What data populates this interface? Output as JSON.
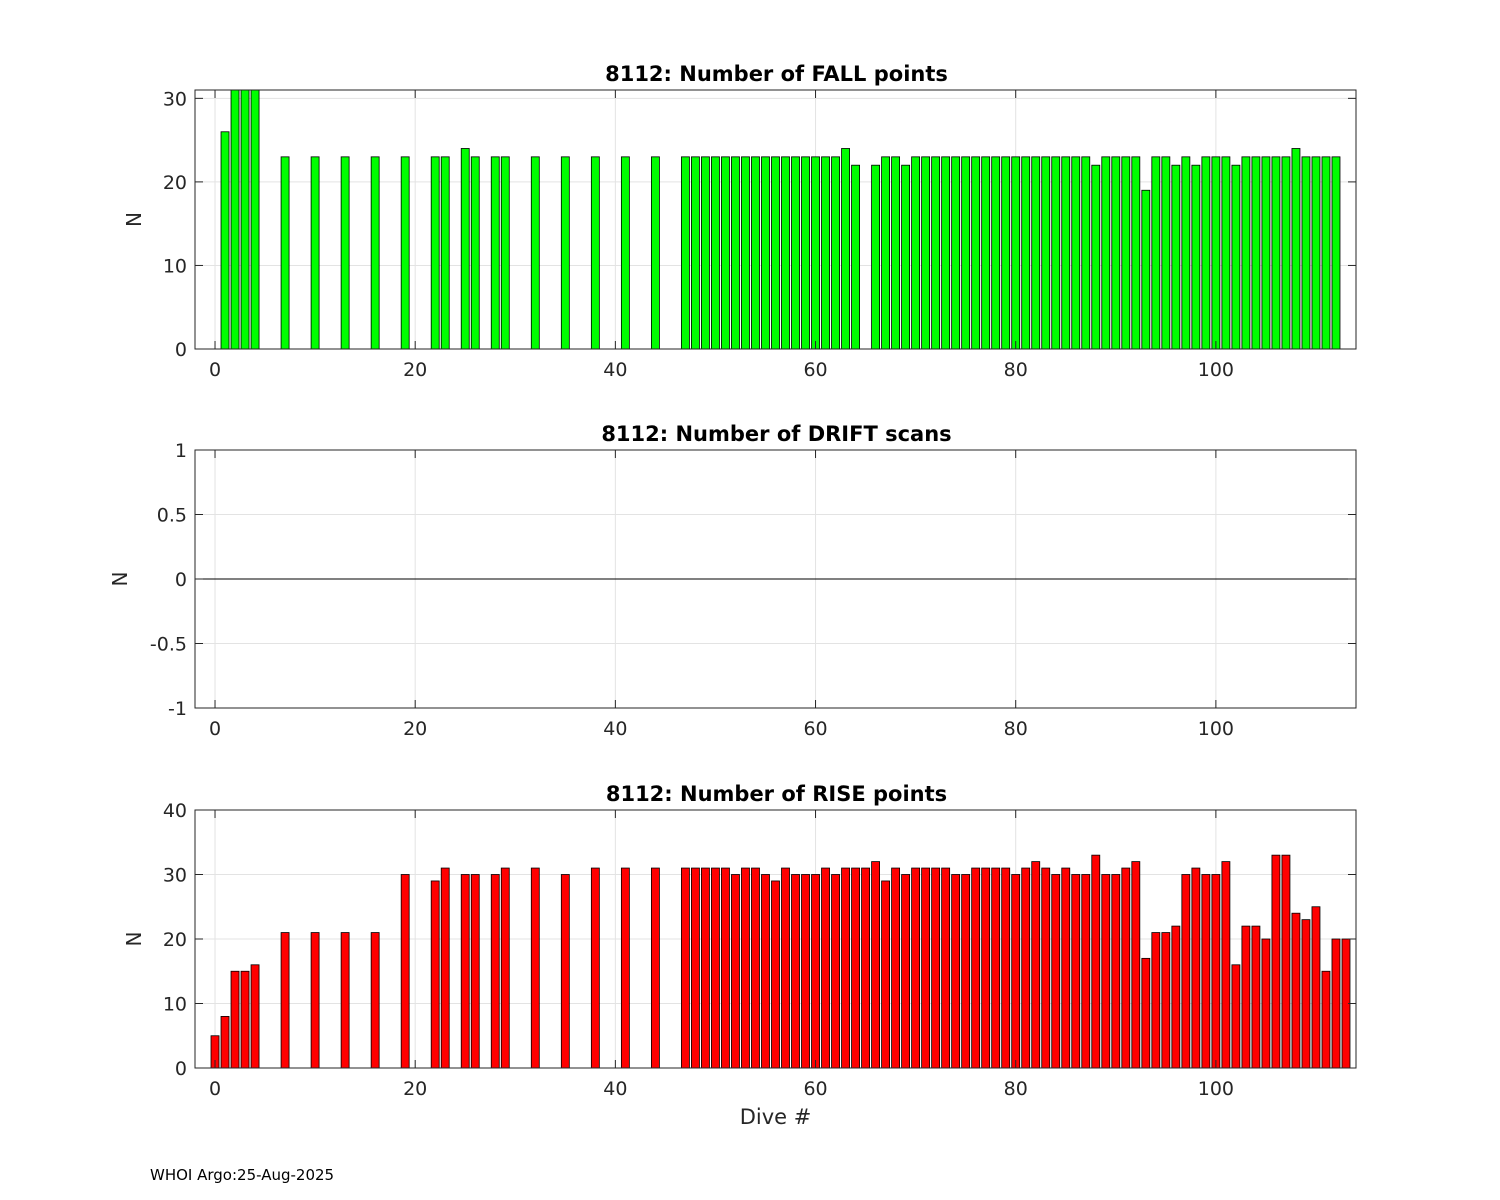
{
  "footer": "WHOI Argo:25-Aug-2025",
  "chart_data": [
    {
      "type": "bar",
      "title": "8112: Number of FALL points",
      "xlabel": "",
      "ylabel": "N",
      "xlim": [
        -2,
        114
      ],
      "ylim": [
        0,
        31
      ],
      "xticks": [
        0,
        20,
        40,
        60,
        80,
        100
      ],
      "yticks": [
        0,
        10,
        20,
        30
      ],
      "ytick_labels": [
        "0",
        "10",
        "20",
        "30"
      ],
      "grid": true,
      "bar_color": "#00ff00",
      "x": [
        1,
        2,
        3,
        4,
        7,
        10,
        13,
        16,
        19,
        22,
        23,
        25,
        26,
        28,
        29,
        32,
        35,
        38,
        41,
        44,
        47,
        48,
        49,
        50,
        51,
        52,
        53,
        54,
        55,
        56,
        57,
        58,
        59,
        60,
        61,
        62,
        63,
        64,
        66,
        67,
        68,
        69,
        70,
        71,
        72,
        73,
        74,
        75,
        76,
        77,
        78,
        79,
        80,
        81,
        82,
        83,
        84,
        85,
        86,
        87,
        88,
        89,
        90,
        91,
        92,
        93,
        94,
        95,
        96,
        97,
        98,
        99,
        100,
        101,
        102,
        103,
        104,
        105,
        106,
        107,
        108,
        109,
        110,
        111,
        112
      ],
      "values": [
        26,
        31,
        31,
        31,
        23,
        23,
        23,
        23,
        23,
        23,
        23,
        24,
        23,
        23,
        23,
        23,
        23,
        23,
        23,
        23,
        23,
        23,
        23,
        23,
        23,
        23,
        23,
        23,
        23,
        23,
        23,
        23,
        23,
        23,
        23,
        23,
        24,
        22,
        22,
        23,
        23,
        22,
        23,
        23,
        23,
        23,
        23,
        23,
        23,
        23,
        23,
        23,
        23,
        23,
        23,
        23,
        23,
        23,
        23,
        23,
        22,
        23,
        23,
        23,
        23,
        19,
        23,
        23,
        22,
        23,
        22,
        23,
        23,
        23,
        22,
        23,
        23,
        23,
        23,
        23,
        24,
        23,
        23,
        23,
        23
      ]
    },
    {
      "type": "bar",
      "title": "8112: Number of DRIFT scans",
      "xlabel": "",
      "ylabel": "N",
      "xlim": [
        -2,
        114
      ],
      "ylim": [
        -1,
        1
      ],
      "xticks": [
        0,
        20,
        40,
        60,
        80,
        100
      ],
      "yticks": [
        -1,
        -0.5,
        0,
        0.5,
        1
      ],
      "ytick_labels": [
        "-1",
        "-0.5",
        "0",
        "0.5",
        "1"
      ],
      "grid": true,
      "bar_color": "#0000ff",
      "baseline": 0,
      "x": [],
      "values": []
    },
    {
      "type": "bar",
      "title": "8112: Number of RISE points",
      "xlabel": "Dive #",
      "ylabel": "N",
      "xlim": [
        -2,
        114
      ],
      "ylim": [
        0,
        40
      ],
      "xticks": [
        0,
        20,
        40,
        60,
        80,
        100
      ],
      "yticks": [
        0,
        10,
        20,
        30,
        40
      ],
      "ytick_labels": [
        "0",
        "10",
        "20",
        "30",
        "40"
      ],
      "grid": true,
      "bar_color": "#ff0000",
      "x": [
        0,
        1,
        2,
        3,
        4,
        7,
        10,
        13,
        16,
        19,
        22,
        23,
        25,
        26,
        28,
        29,
        32,
        35,
        38,
        41,
        44,
        47,
        48,
        49,
        50,
        51,
        52,
        53,
        54,
        55,
        56,
        57,
        58,
        59,
        60,
        61,
        62,
        63,
        64,
        65,
        66,
        67,
        68,
        69,
        70,
        71,
        72,
        73,
        74,
        75,
        76,
        77,
        78,
        79,
        80,
        81,
        82,
        83,
        84,
        85,
        86,
        87,
        88,
        89,
        90,
        91,
        92,
        93,
        94,
        95,
        96,
        97,
        98,
        99,
        100,
        101,
        102,
        103,
        104,
        105,
        106,
        107,
        108,
        109,
        110,
        111,
        112,
        113
      ],
      "values": [
        5,
        8,
        15,
        15,
        16,
        21,
        21,
        21,
        21,
        30,
        29,
        31,
        30,
        30,
        30,
        31,
        31,
        30,
        31,
        31,
        31,
        31,
        31,
        31,
        31,
        31,
        30,
        31,
        31,
        30,
        29,
        31,
        30,
        30,
        30,
        31,
        30,
        31,
        31,
        31,
        32,
        29,
        31,
        30,
        31,
        31,
        31,
        31,
        30,
        30,
        31,
        31,
        31,
        31,
        30,
        31,
        32,
        31,
        30,
        31,
        30,
        30,
        33,
        30,
        30,
        31,
        32,
        17,
        21,
        21,
        22,
        30,
        31,
        30,
        30,
        32,
        16,
        22,
        22,
        20,
        33,
        33,
        24,
        23,
        25,
        15,
        20,
        20
      ]
    }
  ]
}
